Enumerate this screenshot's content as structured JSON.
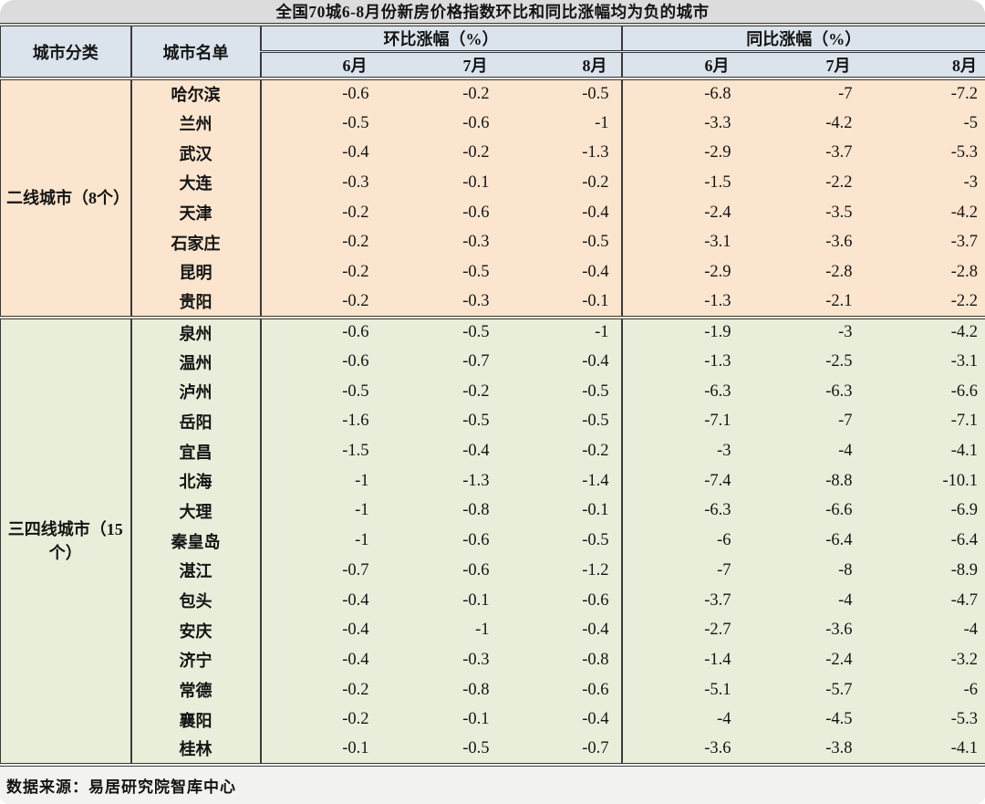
{
  "chart_data": {
    "type": "table",
    "title": "全国70城6-8月份新房价格指数环比和同比涨幅均为负的城市",
    "headers": {
      "category": "城市分类",
      "city": "城市名单",
      "mom_group": "环比涨幅（%）",
      "yoy_group": "同比涨幅（%）",
      "months": [
        "6月",
        "7月",
        "8月"
      ]
    },
    "groups": [
      {
        "category": "二线城市（8个）",
        "bg": "#fbe5ce",
        "rows": [
          {
            "city": "哈尔滨",
            "mom": [
              "-0.6",
              "-0.2",
              "-0.5"
            ],
            "yoy": [
              "-6.8",
              "-7",
              "-7.2"
            ]
          },
          {
            "city": "兰州",
            "mom": [
              "-0.5",
              "-0.6",
              "-1"
            ],
            "yoy": [
              "-3.3",
              "-4.2",
              "-5"
            ]
          },
          {
            "city": "武汉",
            "mom": [
              "-0.4",
              "-0.2",
              "-1.3"
            ],
            "yoy": [
              "-2.9",
              "-3.7",
              "-5.3"
            ]
          },
          {
            "city": "大连",
            "mom": [
              "-0.3",
              "-0.1",
              "-0.2"
            ],
            "yoy": [
              "-1.5",
              "-2.2",
              "-3"
            ]
          },
          {
            "city": "天津",
            "mom": [
              "-0.2",
              "-0.6",
              "-0.4"
            ],
            "yoy": [
              "-2.4",
              "-3.5",
              "-4.2"
            ]
          },
          {
            "city": "石家庄",
            "mom": [
              "-0.2",
              "-0.3",
              "-0.5"
            ],
            "yoy": [
              "-3.1",
              "-3.6",
              "-3.7"
            ]
          },
          {
            "city": "昆明",
            "mom": [
              "-0.2",
              "-0.5",
              "-0.4"
            ],
            "yoy": [
              "-2.9",
              "-2.8",
              "-2.8"
            ]
          },
          {
            "city": "贵阳",
            "mom": [
              "-0.2",
              "-0.3",
              "-0.1"
            ],
            "yoy": [
              "-1.3",
              "-2.1",
              "-2.2"
            ]
          }
        ]
      },
      {
        "category": "三四线城市（15个）",
        "bg": "#e9eedb",
        "rows": [
          {
            "city": "泉州",
            "mom": [
              "-0.6",
              "-0.5",
              "-1"
            ],
            "yoy": [
              "-1.9",
              "-3",
              "-4.2"
            ]
          },
          {
            "city": "温州",
            "mom": [
              "-0.6",
              "-0.7",
              "-0.4"
            ],
            "yoy": [
              "-1.3",
              "-2.5",
              "-3.1"
            ]
          },
          {
            "city": "泸州",
            "mom": [
              "-0.5",
              "-0.2",
              "-0.5"
            ],
            "yoy": [
              "-6.3",
              "-6.3",
              "-6.6"
            ]
          },
          {
            "city": "岳阳",
            "mom": [
              "-1.6",
              "-0.5",
              "-0.5"
            ],
            "yoy": [
              "-7.1",
              "-7",
              "-7.1"
            ]
          },
          {
            "city": "宜昌",
            "mom": [
              "-1.5",
              "-0.4",
              "-0.2"
            ],
            "yoy": [
              "-3",
              "-4",
              "-4.1"
            ]
          },
          {
            "city": "北海",
            "mom": [
              "-1",
              "-1.3",
              "-1.4"
            ],
            "yoy": [
              "-7.4",
              "-8.8",
              "-10.1"
            ]
          },
          {
            "city": "大理",
            "mom": [
              "-1",
              "-0.8",
              "-0.1"
            ],
            "yoy": [
              "-6.3",
              "-6.6",
              "-6.9"
            ]
          },
          {
            "city": "秦皇岛",
            "mom": [
              "-1",
              "-0.6",
              "-0.5"
            ],
            "yoy": [
              "-6",
              "-6.4",
              "-6.4"
            ]
          },
          {
            "city": "湛江",
            "mom": [
              "-0.7",
              "-0.6",
              "-1.2"
            ],
            "yoy": [
              "-7",
              "-8",
              "-8.9"
            ]
          },
          {
            "city": "包头",
            "mom": [
              "-0.4",
              "-0.1",
              "-0.6"
            ],
            "yoy": [
              "-3.7",
              "-4",
              "-4.7"
            ]
          },
          {
            "city": "安庆",
            "mom": [
              "-0.4",
              "-1",
              "-0.4"
            ],
            "yoy": [
              "-2.7",
              "-3.6",
              "-4"
            ]
          },
          {
            "city": "济宁",
            "mom": [
              "-0.4",
              "-0.3",
              "-0.8"
            ],
            "yoy": [
              "-1.4",
              "-2.4",
              "-3.2"
            ]
          },
          {
            "city": "常德",
            "mom": [
              "-0.2",
              "-0.8",
              "-0.6"
            ],
            "yoy": [
              "-5.1",
              "-5.7",
              "-6"
            ]
          },
          {
            "city": "襄阳",
            "mom": [
              "-0.2",
              "-0.1",
              "-0.4"
            ],
            "yoy": [
              "-4",
              "-4.5",
              "-5.3"
            ]
          },
          {
            "city": "桂林",
            "mom": [
              "-0.1",
              "-0.5",
              "-0.7"
            ],
            "yoy": [
              "-3.6",
              "-3.8",
              "-4.1"
            ]
          }
        ]
      }
    ],
    "source_note": "数据来源：易居研究院智库中心"
  },
  "colors": {
    "title_bar_bg": "#dcdcdc",
    "header_bg": "#dbe4ec",
    "tier2_row_bg": "#fbe5ce",
    "tier34_row_bg": "#e9eedb",
    "footer_bg": "#f2f2f0",
    "border": "#3a3a3a",
    "text": "#141414"
  }
}
